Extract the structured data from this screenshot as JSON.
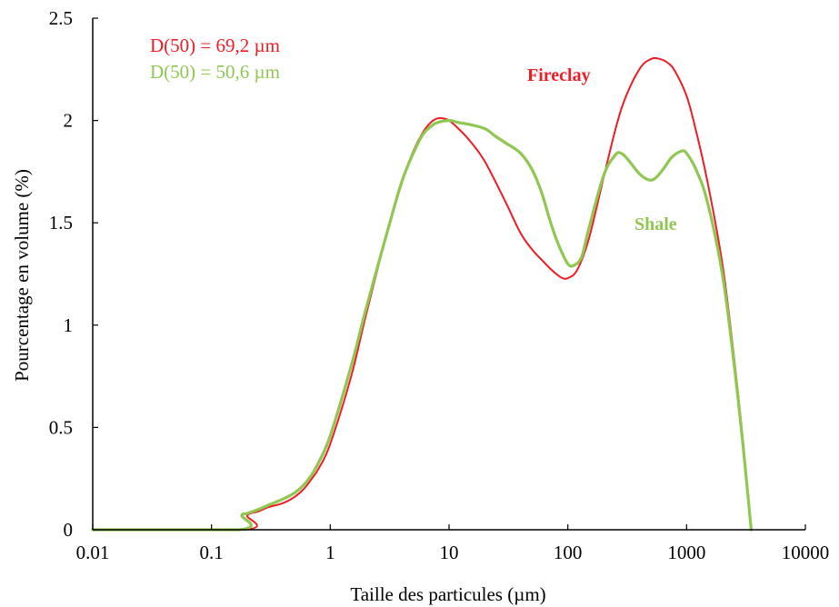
{
  "chart_data": {
    "type": "line",
    "xscale": "log",
    "xlim": [
      0.01,
      10000
    ],
    "ylim": [
      0,
      2.5
    ],
    "xlabel": "Taille des particules (µm)",
    "ylabel": "Pourcentage en volume (%)",
    "x_ticks": [
      0.01,
      0.1,
      1,
      10,
      100,
      1000,
      10000
    ],
    "x_tick_labels": [
      "0.01",
      "0.1",
      "1",
      "10",
      "100",
      "1000",
      "10000"
    ],
    "y_ticks": [
      0,
      0.5,
      1,
      1.5,
      2,
      2.5
    ],
    "y_tick_labels": [
      "0",
      "0.5",
      "1",
      "1.5",
      "2",
      "2.5"
    ],
    "grid": false,
    "annotations": [
      {
        "text": "D(50) = 69,2 µm",
        "color": "#ee1c25"
      },
      {
        "text": "D(50) = 50,6 µm",
        "color": "#8fc751"
      }
    ],
    "series": [
      {
        "name": "Fireclay",
        "color": "#ee1c25",
        "points": [
          [
            0.01,
            0
          ],
          [
            0.19,
            0
          ],
          [
            0.2,
            0.07
          ],
          [
            0.25,
            0.09
          ],
          [
            0.3,
            0.11
          ],
          [
            0.4,
            0.13
          ],
          [
            0.5,
            0.16
          ],
          [
            0.6,
            0.2
          ],
          [
            0.7,
            0.25
          ],
          [
            0.8,
            0.3
          ],
          [
            1,
            0.42
          ],
          [
            1.5,
            0.75
          ],
          [
            2,
            1.05
          ],
          [
            3,
            1.45
          ],
          [
            4,
            1.7
          ],
          [
            5,
            1.85
          ],
          [
            6,
            1.94
          ],
          [
            7,
            1.99
          ],
          [
            8,
            2.01
          ],
          [
            9,
            2.01
          ],
          [
            10,
            2.0
          ],
          [
            12,
            1.96
          ],
          [
            15,
            1.9
          ],
          [
            20,
            1.8
          ],
          [
            30,
            1.6
          ],
          [
            40,
            1.45
          ],
          [
            50,
            1.37
          ],
          [
            60,
            1.32
          ],
          [
            70,
            1.28
          ],
          [
            80,
            1.25
          ],
          [
            90,
            1.23
          ],
          [
            100,
            1.23
          ],
          [
            120,
            1.27
          ],
          [
            150,
            1.42
          ],
          [
            200,
            1.72
          ],
          [
            250,
            1.95
          ],
          [
            300,
            2.1
          ],
          [
            400,
            2.25
          ],
          [
            500,
            2.3
          ],
          [
            600,
            2.3
          ],
          [
            700,
            2.28
          ],
          [
            800,
            2.24
          ],
          [
            1000,
            2.12
          ],
          [
            1200,
            1.95
          ],
          [
            1500,
            1.7
          ],
          [
            2000,
            1.3
          ],
          [
            2500,
            0.85
          ],
          [
            3000,
            0.42
          ],
          [
            3500,
            0
          ]
        ]
      },
      {
        "name": "Shale",
        "color": "#8fc751",
        "points": [
          [
            0.01,
            0
          ],
          [
            0.17,
            0
          ],
          [
            0.18,
            0.07
          ],
          [
            0.2,
            0.08
          ],
          [
            0.25,
            0.1
          ],
          [
            0.3,
            0.12
          ],
          [
            0.4,
            0.15
          ],
          [
            0.5,
            0.18
          ],
          [
            0.6,
            0.22
          ],
          [
            0.7,
            0.27
          ],
          [
            0.8,
            0.33
          ],
          [
            1,
            0.46
          ],
          [
            1.5,
            0.8
          ],
          [
            2,
            1.08
          ],
          [
            3,
            1.45
          ],
          [
            4,
            1.7
          ],
          [
            5,
            1.84
          ],
          [
            6,
            1.93
          ],
          [
            7,
            1.97
          ],
          [
            8,
            1.99
          ],
          [
            10,
            2.0
          ],
          [
            12,
            1.99
          ],
          [
            15,
            1.98
          ],
          [
            20,
            1.96
          ],
          [
            25,
            1.92
          ],
          [
            30,
            1.89
          ],
          [
            40,
            1.84
          ],
          [
            50,
            1.76
          ],
          [
            60,
            1.65
          ],
          [
            70,
            1.52
          ],
          [
            80,
            1.42
          ],
          [
            90,
            1.35
          ],
          [
            100,
            1.3
          ],
          [
            110,
            1.29
          ],
          [
            130,
            1.33
          ],
          [
            150,
            1.47
          ],
          [
            200,
            1.73
          ],
          [
            250,
            1.83
          ],
          [
            280,
            1.84
          ],
          [
            320,
            1.81
          ],
          [
            400,
            1.74
          ],
          [
            480,
            1.71
          ],
          [
            550,
            1.72
          ],
          [
            650,
            1.77
          ],
          [
            750,
            1.82
          ],
          [
            900,
            1.85
          ],
          [
            1000,
            1.84
          ],
          [
            1200,
            1.76
          ],
          [
            1500,
            1.6
          ],
          [
            2000,
            1.25
          ],
          [
            2500,
            0.82
          ],
          [
            3000,
            0.4
          ],
          [
            3500,
            0
          ]
        ]
      }
    ]
  }
}
